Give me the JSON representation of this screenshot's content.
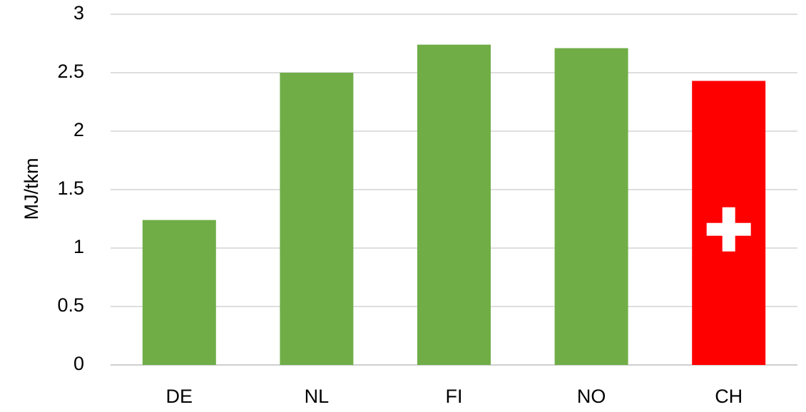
{
  "chart_data": {
    "type": "bar",
    "title": "",
    "xlabel": "",
    "ylabel": "MJ/tkm",
    "categories": [
      "DE",
      "NL",
      "FI",
      "NO",
      "CH"
    ],
    "values": [
      1.24,
      2.5,
      2.74,
      2.71,
      2.43
    ],
    "bar_colors": [
      "#70ad47",
      "#70ad47",
      "#70ad47",
      "#70ad47",
      "#ff0000"
    ],
    "highlight": {
      "category": "CH",
      "icon": "swiss-cross-icon",
      "icon_color": "#ffffff"
    },
    "ylim": [
      0,
      3
    ],
    "yticks": [
      0,
      0.5,
      1,
      1.5,
      2,
      2.5,
      3
    ],
    "ytick_labels": [
      "0",
      "0.5",
      "1",
      "1.5",
      "2",
      "2.5",
      "3"
    ],
    "grid": true,
    "legend": "none"
  }
}
